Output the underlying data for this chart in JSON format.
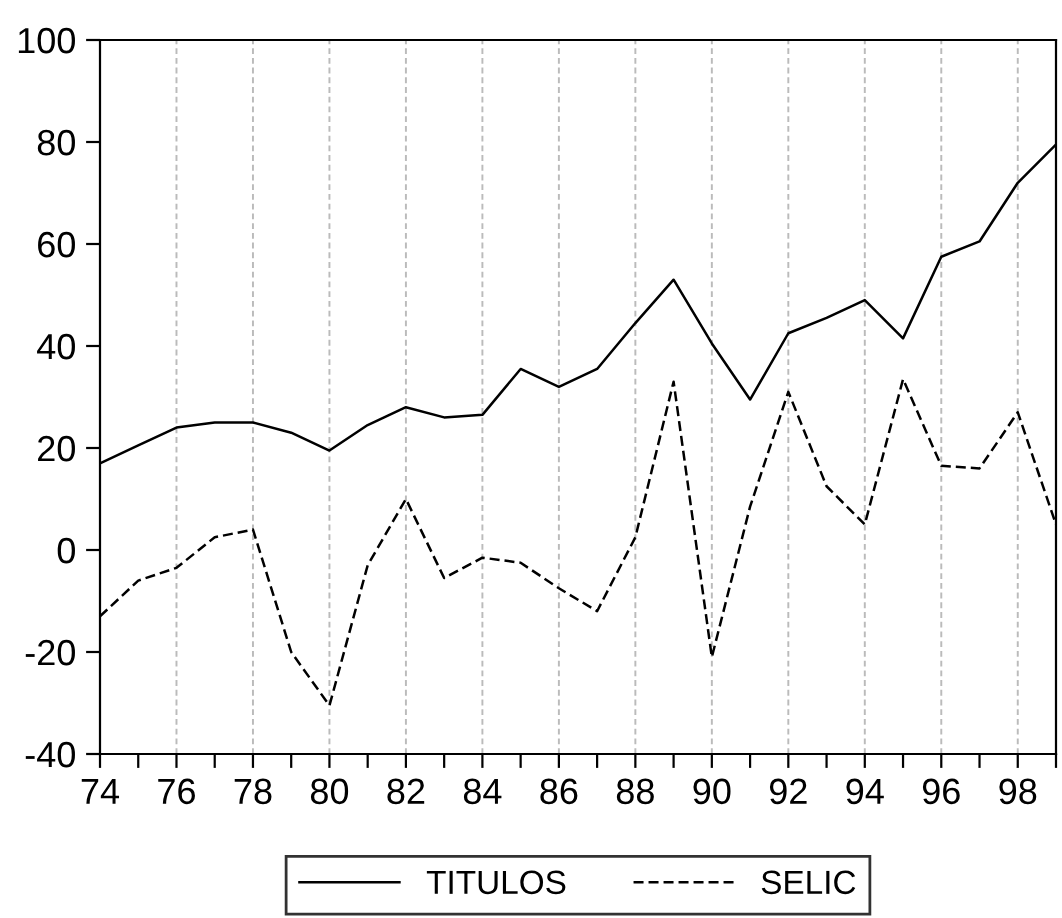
{
  "chart_data": {
    "type": "line",
    "x": [
      74,
      75,
      76,
      77,
      78,
      79,
      80,
      81,
      82,
      83,
      84,
      85,
      86,
      87,
      88,
      89,
      90,
      91,
      92,
      93,
      94,
      95,
      96,
      97,
      98,
      99
    ],
    "series": [
      {
        "name": "TITULOS",
        "color": "#000000",
        "line_style": "solid",
        "values": [
          17,
          20.5,
          24,
          25,
          25,
          23,
          19.5,
          24.5,
          28,
          26,
          26.5,
          35.5,
          32,
          35.5,
          44.5,
          53,
          40.5,
          29.5,
          42.5,
          45.5,
          49,
          41.5,
          57.5,
          60.5,
          72,
          79.5
        ]
      },
      {
        "name": "SELIC",
        "color": "#000000",
        "line_style": "dashed",
        "values": [
          -13,
          -6,
          -3.5,
          2.5,
          4,
          -20,
          -30.5,
          -3,
          10,
          -5.5,
          -1.5,
          -2.5,
          -7.5,
          -12,
          2.5,
          33,
          -21,
          8.5,
          31,
          12.5,
          5,
          33.5,
          16.5,
          16,
          27,
          5
        ]
      }
    ],
    "xlim": [
      74,
      99
    ],
    "xticks": [
      74,
      {
        "value": 75,
        "label": null
      },
      76,
      {
        "value": 77,
        "label": null
      },
      78,
      {
        "value": 79,
        "label": null
      },
      80,
      {
        "value": 81,
        "label": null
      },
      82,
      {
        "value": 83,
        "label": null
      },
      84,
      {
        "value": 85,
        "label": null
      },
      86,
      {
        "value": 87,
        "label": null
      },
      88,
      {
        "value": 89,
        "label": null
      },
      90,
      {
        "value": 91,
        "label": null
      },
      92,
      {
        "value": 93,
        "label": null
      },
      94,
      {
        "value": 95,
        "label": null
      },
      96,
      {
        "value": 97,
        "label": null
      },
      98,
      {
        "value": 99,
        "label": null
      }
    ],
    "ylim": [
      -40,
      100
    ],
    "yticks": [
      -40,
      -20,
      0,
      20,
      40,
      60,
      80,
      100
    ],
    "grid": "x",
    "legend": "bottom",
    "marker": "none"
  }
}
